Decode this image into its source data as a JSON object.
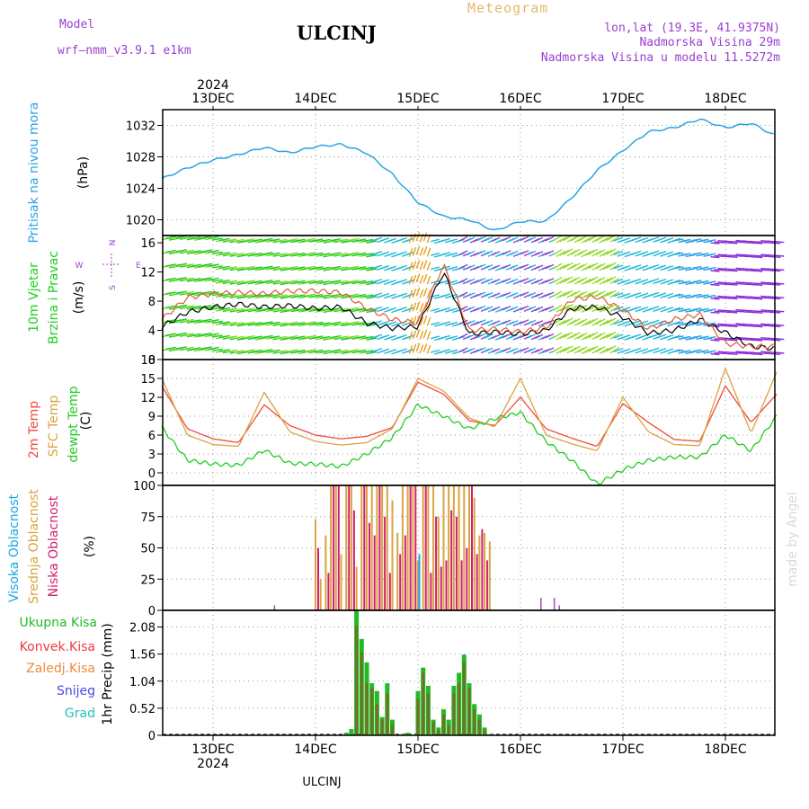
{
  "header": {
    "model_label": "Model",
    "model_name": "wrf–nmm_v3.9.1  e1km",
    "title": "ULCINJ",
    "meteogram": "Meteogram",
    "lonlat": "lon,lat (19.3E, 41.9375N)",
    "elevation": "Nadmorska Visina 29m",
    "model_elevation": "Nadmorska Visina u modelu 11.5272m",
    "footer": "ULCINJ",
    "credit": "made by Angel"
  },
  "colors": {
    "pressure": "#2aa3e6",
    "wind": "#1fcf1f",
    "temp2m": "#ef4b3c",
    "sfc": "#d9a441",
    "dewpt": "#22cc22",
    "high_cloud": "#1aa7e6",
    "mid_cloud": "#d9a441",
    "low_cloud": "#d11f6e",
    "total_precip": "#22bb22",
    "conv_precip": "#ee3b3b",
    "frozen": "#f08a3b",
    "snow": "#4a4ae0",
    "grad": "#22c0b8",
    "arrows": "#9a3fd1"
  },
  "chart_data": [
    {
      "type": "line",
      "panel": "pressure",
      "ylabel_series": "Pritisak na nivou mora",
      "ylabel_unit": "(hPa)",
      "ylim": [
        1018,
        1034
      ],
      "yticks": [
        "1020",
        "1024",
        "1028",
        "1032"
      ],
      "x_days": [
        0.0,
        0.25,
        0.5,
        0.75,
        1.0,
        1.25,
        1.5,
        1.75,
        2.0,
        2.25,
        2.5,
        2.75,
        3.0,
        3.25,
        3.5,
        3.75,
        4.0,
        4.25,
        4.5,
        4.75,
        5.0,
        5.25,
        5.5,
        5.75,
        6.0
      ],
      "values": [
        1025.2,
        1026.6,
        1027.6,
        1028.3,
        1029.2,
        1028.5,
        1029.3,
        1029.6,
        1028.5,
        1025.8,
        1022.2,
        1020.4,
        1020.0,
        1018.6,
        1019.8,
        1019.8,
        1022.8,
        1026.3,
        1028.8,
        1031.2,
        1031.7,
        1032.8,
        1031.7,
        1032.3,
        1030.6
      ]
    },
    {
      "type": "line",
      "panel": "wind",
      "ylabel_series": [
        "10m Vjetar",
        "Brzina i Pravac"
      ],
      "ylabel_unit": "(m/s)",
      "ylim": [
        0,
        17
      ],
      "yticks": [
        "0",
        "4",
        "8",
        "12",
        "16"
      ],
      "compass": [
        "N",
        "E",
        "S",
        "W"
      ],
      "x_days": [
        0.0,
        0.25,
        0.5,
        0.75,
        1.0,
        1.25,
        1.5,
        1.75,
        2.0,
        2.25,
        2.5,
        2.75,
        3.0,
        3.25,
        3.5,
        3.75,
        4.0,
        4.25,
        4.5,
        4.75,
        5.0,
        5.25,
        5.5,
        5.75,
        6.0
      ],
      "series": [
        {
          "name": "speed",
          "values": [
            4.5,
            6.5,
            7.2,
            7.6,
            7.2,
            7.4,
            7.0,
            7.2,
            5.0,
            4.3,
            4.5,
            12.0,
            3.5,
            3.8,
            3.5,
            4.0,
            7.0,
            7.2,
            5.8,
            3.6,
            4.0,
            5.5,
            3.7,
            1.8,
            1.5
          ]
        },
        {
          "name": "gust",
          "values": [
            5.5,
            8.5,
            9.0,
            9.2,
            9.0,
            9.4,
            9.4,
            9.2,
            7.0,
            5.5,
            5.0,
            13.0,
            4.0,
            4.2,
            3.8,
            4.4,
            8.2,
            8.6,
            6.8,
            4.2,
            5.5,
            6.2,
            2.2,
            1.8,
            1.8
          ]
        }
      ]
    },
    {
      "type": "line",
      "panel": "temperature",
      "ylabel_series": [
        "2m Temp",
        "SFC Temp",
        "dewpt Temp"
      ],
      "ylabel_unit": "(C)",
      "ylim": [
        -2,
        18
      ],
      "yticks": [
        "0",
        "3",
        "6",
        "9",
        "12",
        "15",
        "18"
      ],
      "x_days": [
        0.0,
        0.25,
        0.5,
        0.75,
        1.0,
        1.25,
        1.5,
        1.75,
        2.0,
        2.25,
        2.5,
        2.75,
        3.0,
        3.25,
        3.5,
        3.75,
        4.0,
        4.25,
        4.5,
        4.75,
        5.0,
        5.25,
        5.5,
        5.75,
        6.0
      ],
      "series": [
        {
          "name": "2m Temp",
          "values": [
            13.8,
            7.0,
            5.4,
            4.8,
            10.8,
            7.5,
            6.0,
            5.4,
            5.8,
            7.2,
            14.4,
            12.5,
            8.3,
            7.5,
            12.0,
            7.0,
            5.5,
            4.2,
            11.0,
            8.0,
            5.3,
            5.0,
            13.8,
            8.0,
            12.5
          ]
        },
        {
          "name": "SFC Temp",
          "values": [
            15.0,
            6.0,
            4.5,
            4.2,
            12.8,
            6.5,
            5.0,
            4.4,
            4.8,
            7.0,
            15.0,
            13.0,
            8.7,
            7.3,
            15.0,
            6.0,
            4.6,
            3.5,
            12.0,
            6.5,
            4.5,
            4.3,
            16.6,
            6.3,
            16.0
          ]
        },
        {
          "name": "dewpt Temp",
          "values": [
            7.2,
            2.0,
            1.4,
            1.2,
            3.6,
            1.5,
            1.4,
            1.0,
            3.0,
            5.6,
            10.8,
            9.0,
            7.0,
            8.6,
            9.6,
            5.0,
            2.0,
            -1.8,
            0.5,
            2.0,
            2.5,
            2.5,
            6.0,
            3.5,
            9.0
          ]
        }
      ]
    },
    {
      "type": "bar",
      "panel": "clouds",
      "ylabel_series": [
        "Visoka Oblacnost",
        "Srednja Oblacnost",
        "Niska Oblacnost"
      ],
      "ylabel_unit": "(%)",
      "ylim": [
        0,
        100
      ],
      "yticks": [
        "0",
        "25",
        "50",
        "75",
        "100"
      ],
      "x_days": [
        1.0,
        1.05,
        1.1,
        1.15,
        1.2,
        1.25,
        1.3,
        1.35,
        1.4,
        1.45,
        1.5,
        1.55,
        1.6,
        1.65,
        1.7,
        1.75,
        1.8,
        1.85,
        1.9,
        1.95,
        2.0,
        2.05,
        2.1,
        2.15,
        2.2,
        2.25,
        2.3,
        2.35,
        2.4,
        2.45,
        2.5,
        2.55,
        2.6,
        2.65,
        2.7
      ],
      "series": [
        {
          "name": "Srednja Oblacnost",
          "values": [
            73,
            25,
            60,
            100,
            100,
            45,
            100,
            100,
            35,
            100,
            100,
            100,
            100,
            100,
            100,
            88,
            62,
            100,
            100,
            100,
            40,
            100,
            100,
            100,
            75,
            100,
            100,
            100,
            100,
            100,
            100,
            90,
            60,
            62,
            55
          ]
        },
        {
          "name": "Niska Oblacnost",
          "values": [
            50,
            0,
            30,
            100,
            100,
            0,
            100,
            80,
            0,
            100,
            70,
            60,
            100,
            75,
            30,
            0,
            45,
            60,
            100,
            100,
            0,
            100,
            30,
            75,
            35,
            40,
            80,
            75,
            40,
            50,
            100,
            45,
            65,
            40,
            0
          ]
        },
        {
          "name": "Visoka Oblacnost",
          "values": [
            0,
            0,
            0,
            0,
            0,
            0,
            0,
            0,
            0,
            0,
            0,
            0,
            0,
            0,
            0,
            0,
            0,
            0,
            0,
            0,
            45,
            0,
            0,
            0,
            0,
            0,
            0,
            0,
            0,
            0,
            0,
            0,
            0,
            0,
            0
          ]
        }
      ],
      "extra_low": [
        {
          "x": 0.6,
          "value": 4
        },
        {
          "x": 3.2,
          "value": 10
        },
        {
          "x": 3.33,
          "value": 10
        },
        {
          "x": 3.38,
          "value": 4
        }
      ]
    },
    {
      "type": "bar",
      "panel": "precip",
      "ylabel_series": [
        "Ukupna Kisa",
        "Konvek.Kisa",
        "Zaledj.Kisa",
        "Snijeg",
        "Grad"
      ],
      "ylabel_unit": "1hr Precip (mm)",
      "ylim": [
        0,
        2.4
      ],
      "yticks": [
        "0",
        "0.52",
        "1.04",
        "1.56",
        "2.08"
      ],
      "x_days": [
        1.3,
        1.35,
        1.4,
        1.45,
        1.5,
        1.55,
        1.6,
        1.65,
        1.7,
        1.75,
        1.8,
        1.85,
        1.9,
        1.95,
        2.0,
        2.05,
        2.1,
        2.15,
        2.2,
        2.25,
        2.3,
        2.35,
        2.4,
        2.45,
        2.5,
        2.55,
        2.6,
        2.65,
        2.7
      ],
      "series": [
        {
          "name": "Ukupna Kisa",
          "values": [
            0.05,
            0.12,
            2.4,
            1.85,
            1.4,
            1.0,
            0.85,
            0.35,
            1.0,
            0.3,
            0.0,
            0.02,
            0.05,
            0.0,
            0.85,
            1.3,
            0.95,
            0.3,
            0.15,
            0.5,
            0.3,
            0.95,
            1.2,
            1.55,
            1.0,
            0.6,
            0.4,
            0.15,
            0.02
          ]
        },
        {
          "name": "Konvek.Kisa",
          "values": [
            0.0,
            0.0,
            2.1,
            1.6,
            1.0,
            0.9,
            0.6,
            0.3,
            0.8,
            0.2,
            0.0,
            0.0,
            0.0,
            0.0,
            0.7,
            1.2,
            0.8,
            0.25,
            0.1,
            0.4,
            0.2,
            0.8,
            1.0,
            1.4,
            0.9,
            0.5,
            0.3,
            0.1,
            0.0
          ]
        }
      ]
    }
  ],
  "xaxis": {
    "year": "2024",
    "days": [
      "13DEC",
      "14DEC",
      "15DEC",
      "16DEC",
      "17DEC",
      "18DEC"
    ]
  }
}
